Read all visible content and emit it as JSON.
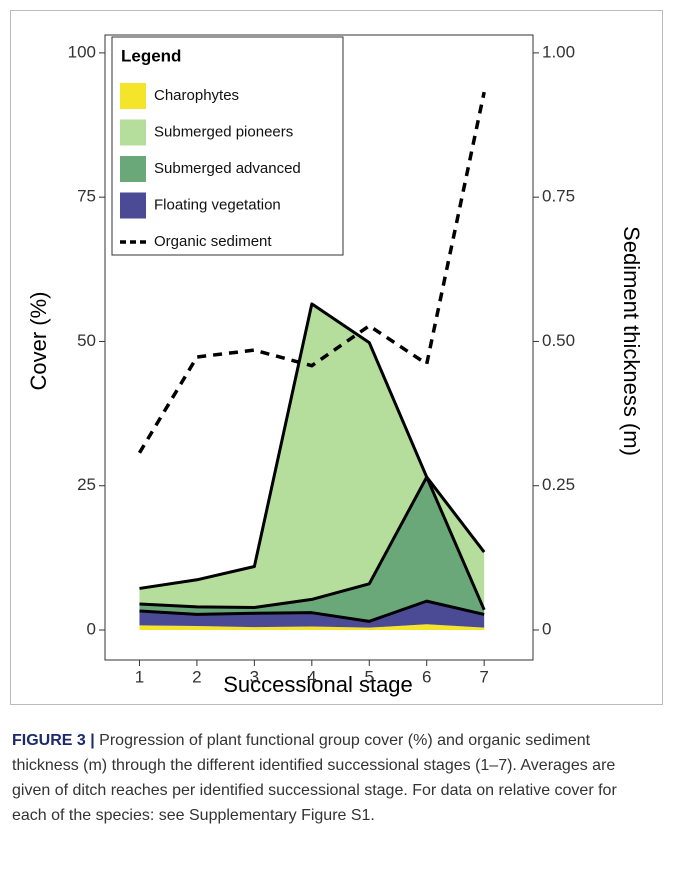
{
  "chart_data": {
    "type": "area",
    "x": [
      1,
      2,
      3,
      4,
      5,
      6,
      7
    ],
    "xlim": [
      0.4,
      7.85
    ],
    "xticks": [
      1,
      2,
      3,
      4,
      5,
      6,
      7
    ],
    "ylim": [
      -5.2,
      103.1
    ],
    "yticks": [
      0,
      25,
      50,
      75,
      100
    ],
    "y2lim": [
      -0.052,
      1.031
    ],
    "y2ticks": [
      0,
      0.25,
      {
        "value": 0.5,
        "label": "0.50"
      },
      0.75,
      {
        "value": 1,
        "label": "1.00"
      }
    ],
    "x_label": "Successional stage",
    "y_label": "Cover (%)",
    "y2_label": "Sediment thickness (m)",
    "legend_title": "Legend",
    "legend": "top-left",
    "series": [
      {
        "name": "Charophytes",
        "color": "#f5e52a",
        "values": [
          0.8,
          0.7,
          0.5,
          0.6,
          0.4,
          1.0,
          0.4
        ]
      },
      {
        "name": "Submerged pioneers",
        "color": "#b5dd9b",
        "values": [
          2.7,
          4.7,
          7.1,
          51.2,
          41.8,
          0,
          10.0
        ]
      },
      {
        "name": "Submerged advanced",
        "color": "#6aa879",
        "values": [
          1.2,
          1.3,
          1.0,
          2.3,
          6.5,
          21.5,
          0.8
        ]
      },
      {
        "name": "Floating vegetation",
        "color": "#4b4b95",
        "values": [
          2.5,
          2.0,
          2.4,
          2.4,
          1.1,
          4.0,
          2.3
        ]
      },
      {
        "name": "Organic sediment",
        "color": "#000000",
        "type": "line",
        "axis": "y2",
        "values": [
          0.307,
          0.473,
          0.485,
          0.458,
          0.527,
          0.461,
          0.932
        ]
      }
    ]
  },
  "caption": {
    "label": "FIGURE 3 |",
    "text": "Progression of plant functional group cover (%) and organic sediment thickness (m) through the different identified successional stages (1–7). Averages are given of ditch reaches per identified successional stage. For data on relative cover for each of the species: see Supplementary Figure S1."
  }
}
